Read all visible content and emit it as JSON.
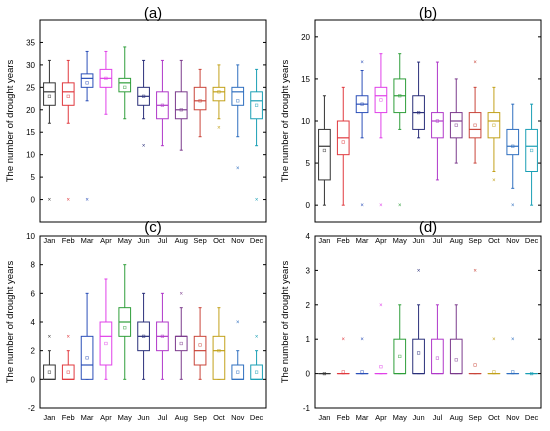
{
  "figure": {
    "months": [
      "Jan",
      "Feb",
      "Mar",
      "Apr",
      "May",
      "Jun",
      "Jul",
      "Aug",
      "Sep",
      "Oct",
      "Nov",
      "Dec"
    ],
    "colors": [
      "#333333",
      "#e0393e",
      "#2b4fb8",
      "#e040e8",
      "#2f9e3a",
      "#2a2f7a",
      "#b038c9",
      "#7b3a8c",
      "#c9453a",
      "#c2a11a",
      "#2f6fbf",
      "#1a9fb5"
    ]
  },
  "chart_data": [
    {
      "type": "box",
      "panel_label": "(a)",
      "ylabel": "The number of drought years",
      "xlabel": "",
      "ylim": [
        -5,
        40
      ],
      "yticks": [
        0,
        5,
        10,
        15,
        20,
        25,
        30,
        35
      ],
      "categories": [
        "Jan",
        "Feb",
        "Mar",
        "Apr",
        "May",
        "Jun",
        "Jul",
        "Aug",
        "Sep",
        "Oct",
        "Nov",
        "Dec"
      ],
      "boxes": [
        {
          "min": 17,
          "q1": 21,
          "median": 24,
          "q3": 26,
          "max": 31,
          "mean": 23,
          "outliers": [
            0
          ]
        },
        {
          "min": 17,
          "q1": 21,
          "median": 24,
          "q3": 26,
          "max": 31,
          "mean": 23,
          "outliers": [
            0
          ]
        },
        {
          "min": 22,
          "q1": 25,
          "median": 27,
          "q3": 28,
          "max": 33,
          "mean": 26,
          "outliers": [
            0
          ]
        },
        {
          "min": 19,
          "q1": 25,
          "median": 27,
          "q3": 29,
          "max": 33,
          "mean": 27,
          "outliers": []
        },
        {
          "min": 18,
          "q1": 24,
          "median": 26,
          "q3": 27,
          "max": 34,
          "mean": 25,
          "outliers": []
        },
        {
          "min": 18,
          "q1": 21,
          "median": 23,
          "q3": 25,
          "max": 31,
          "mean": 23,
          "outliers": [
            12
          ]
        },
        {
          "min": 12,
          "q1": 18,
          "median": 21,
          "q3": 24,
          "max": 31,
          "mean": 21,
          "outliers": []
        },
        {
          "min": 11,
          "q1": 18,
          "median": 20,
          "q3": 24,
          "max": 31,
          "mean": 20,
          "outliers": []
        },
        {
          "min": 14,
          "q1": 20,
          "median": 22,
          "q3": 25,
          "max": 29,
          "mean": 22,
          "outliers": []
        },
        {
          "min": 18,
          "q1": 22,
          "median": 24,
          "q3": 25,
          "max": 30,
          "mean": 24,
          "outliers": [
            16
          ]
        },
        {
          "min": 14,
          "q1": 21,
          "median": 24,
          "q3": 25,
          "max": 30,
          "mean": 22,
          "outliers": [
            7
          ]
        },
        {
          "min": 12,
          "q1": 18,
          "median": 22,
          "q3": 24,
          "max": 29,
          "mean": 21,
          "outliers": [
            0
          ]
        }
      ]
    },
    {
      "type": "box",
      "panel_label": "(b)",
      "ylabel": "The number of drought years",
      "xlabel": "",
      "ylim": [
        -2,
        22
      ],
      "yticks": [
        0,
        5,
        10,
        15,
        20
      ],
      "categories": [
        "Jan",
        "Feb",
        "Mar",
        "Apr",
        "May",
        "Jun",
        "Jul",
        "Aug",
        "Sep",
        "Oct",
        "Nov",
        "Dec"
      ],
      "boxes": [
        {
          "min": 0,
          "q1": 3,
          "median": 7,
          "q3": 9,
          "max": 13,
          "mean": 6.5,
          "outliers": []
        },
        {
          "min": 0,
          "q1": 6,
          "median": 8,
          "q3": 10,
          "max": 14,
          "mean": 7.5,
          "outliers": []
        },
        {
          "min": 8,
          "q1": 11,
          "median": 12,
          "q3": 13,
          "max": 16,
          "mean": 12,
          "outliers": [
            0,
            17
          ]
        },
        {
          "min": 8,
          "q1": 11,
          "median": 13,
          "q3": 14,
          "max": 18,
          "mean": 12.5,
          "outliers": [
            0
          ]
        },
        {
          "min": 9,
          "q1": 11,
          "median": 13,
          "q3": 15,
          "max": 18,
          "mean": 13,
          "outliers": [
            0
          ]
        },
        {
          "min": 8,
          "q1": 9,
          "median": 11,
          "q3": 13,
          "max": 17,
          "mean": 11,
          "outliers": []
        },
        {
          "min": 3,
          "q1": 8,
          "median": 10,
          "q3": 11,
          "max": 17,
          "mean": 10,
          "outliers": []
        },
        {
          "min": 5,
          "q1": 8,
          "median": 10,
          "q3": 11,
          "max": 15,
          "mean": 9.5,
          "outliers": []
        },
        {
          "min": 5,
          "q1": 8,
          "median": 9,
          "q3": 11,
          "max": 14,
          "mean": 9.5,
          "outliers": [
            17
          ]
        },
        {
          "min": 4,
          "q1": 8,
          "median": 10,
          "q3": 11,
          "max": 14,
          "mean": 9.5,
          "outliers": [
            3
          ]
        },
        {
          "min": 2,
          "q1": 6,
          "median": 7,
          "q3": 9,
          "max": 12,
          "mean": 7,
          "outliers": [
            0
          ]
        },
        {
          "min": 0,
          "q1": 4,
          "median": 7,
          "q3": 9,
          "max": 12,
          "mean": 6.5,
          "outliers": []
        }
      ]
    },
    {
      "type": "box",
      "panel_label": "(c)",
      "ylabel": "The number of drought years",
      "xlabel": "",
      "ylim": [
        -2,
        10
      ],
      "yticks": [
        -2,
        0,
        2,
        4,
        6,
        8,
        10
      ],
      "categories": [
        "Jan",
        "Feb",
        "Mar",
        "Apr",
        "May",
        "Jun",
        "Jul",
        "Aug",
        "Sep",
        "Oct",
        "Nov",
        "Dec"
      ],
      "boxes": [
        {
          "min": 0,
          "q1": 0,
          "median": 0,
          "q3": 1,
          "max": 2,
          "mean": 0.5,
          "outliers": [
            3
          ]
        },
        {
          "min": 0,
          "q1": 0,
          "median": 0,
          "q3": 1,
          "max": 2,
          "mean": 0.5,
          "outliers": [
            3
          ]
        },
        {
          "min": 0,
          "q1": 0,
          "median": 1,
          "q3": 3,
          "max": 6,
          "mean": 1.5,
          "outliers": []
        },
        {
          "min": 0,
          "q1": 1,
          "median": 3,
          "q3": 4,
          "max": 7,
          "mean": 2.5,
          "outliers": []
        },
        {
          "min": 0,
          "q1": 3,
          "median": 4,
          "q3": 5,
          "max": 8,
          "mean": 3.6,
          "outliers": []
        },
        {
          "min": 0,
          "q1": 2,
          "median": 3,
          "q3": 4,
          "max": 6,
          "mean": 3,
          "outliers": []
        },
        {
          "min": 0,
          "q1": 2,
          "median": 3,
          "q3": 4,
          "max": 6,
          "mean": 3,
          "outliers": []
        },
        {
          "min": 0,
          "q1": 2,
          "median": 3,
          "q3": 3,
          "max": 5,
          "mean": 2.5,
          "outliers": [
            6
          ]
        },
        {
          "min": 0,
          "q1": 1,
          "median": 2,
          "q3": 3,
          "max": 5,
          "mean": 2.4,
          "outliers": []
        },
        {
          "min": 0,
          "q1": 0,
          "median": 2,
          "q3": 3,
          "max": 5,
          "mean": 2,
          "outliers": []
        },
        {
          "min": 0,
          "q1": 0,
          "median": 0,
          "q3": 1,
          "max": 2,
          "mean": 0.5,
          "outliers": [
            4
          ]
        },
        {
          "min": 0,
          "q1": 0,
          "median": 0,
          "q3": 1,
          "max": 2,
          "mean": 0.5,
          "outliers": [
            3
          ]
        }
      ]
    },
    {
      "type": "box",
      "panel_label": "(d)",
      "ylabel": "The number of drought years",
      "xlabel": "",
      "ylim": [
        -1,
        4
      ],
      "yticks": [
        -1,
        0,
        1,
        2,
        3,
        4
      ],
      "categories": [
        "Jan",
        "Feb",
        "Mar",
        "Apr",
        "May",
        "Jun",
        "Jul",
        "Aug",
        "Sep",
        "Oct",
        "Nov",
        "Dec"
      ],
      "boxes": [
        {
          "min": 0,
          "q1": 0,
          "median": 0,
          "q3": 0,
          "max": 0,
          "mean": 0,
          "outliers": []
        },
        {
          "min": 0,
          "q1": 0,
          "median": 0,
          "q3": 0,
          "max": 0,
          "mean": 0.05,
          "outliers": [
            1
          ]
        },
        {
          "min": 0,
          "q1": 0,
          "median": 0,
          "q3": 0,
          "max": 0,
          "mean": 0.05,
          "outliers": [
            1
          ]
        },
        {
          "min": 0,
          "q1": 0,
          "median": 0,
          "q3": 0,
          "max": 0,
          "mean": 0.2,
          "outliers": [
            2
          ]
        },
        {
          "min": 0,
          "q1": 0,
          "median": 0,
          "q3": 1,
          "max": 2,
          "mean": 0.5,
          "outliers": []
        },
        {
          "min": 0,
          "q1": 0,
          "median": 0,
          "q3": 1,
          "max": 2,
          "mean": 0.6,
          "outliers": [
            3
          ]
        },
        {
          "min": 0,
          "q1": 0,
          "median": 0,
          "q3": 1,
          "max": 2,
          "mean": 0.45,
          "outliers": []
        },
        {
          "min": 0,
          "q1": 0,
          "median": 0,
          "q3": 1,
          "max": 2,
          "mean": 0.4,
          "outliers": []
        },
        {
          "min": 0,
          "q1": 0,
          "median": 0,
          "q3": 0,
          "max": 0,
          "mean": 0.25,
          "outliers": [
            3
          ]
        },
        {
          "min": 0,
          "q1": 0,
          "median": 0,
          "q3": 0,
          "max": 0,
          "mean": 0.05,
          "outliers": [
            1
          ]
        },
        {
          "min": 0,
          "q1": 0,
          "median": 0,
          "q3": 0,
          "max": 0,
          "mean": 0.05,
          "outliers": [
            1
          ]
        },
        {
          "min": 0,
          "q1": 0,
          "median": 0,
          "q3": 0,
          "max": 0,
          "mean": 0,
          "outliers": []
        }
      ]
    }
  ]
}
